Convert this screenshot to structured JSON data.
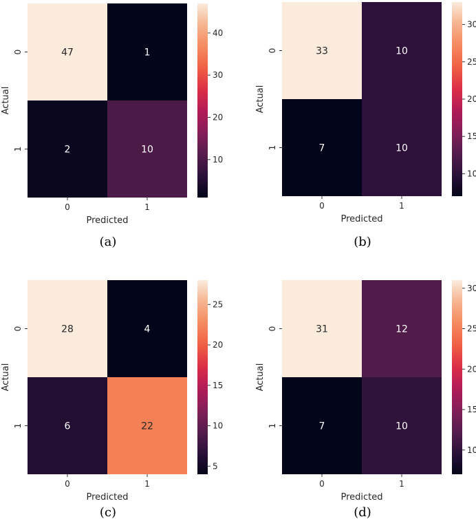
{
  "chart_data": [
    {
      "type": "heatmap",
      "caption": "(a)",
      "xlabel": "Predicted",
      "ylabel": "Actual",
      "x_categories": [
        "0",
        "1"
      ],
      "y_categories": [
        "0",
        "1"
      ],
      "values": [
        [
          47,
          1
        ],
        [
          2,
          10
        ]
      ],
      "colorbar": {
        "range": [
          1,
          47
        ],
        "ticks": [
          10,
          20,
          30,
          40
        ]
      }
    },
    {
      "type": "heatmap",
      "caption": "(b)",
      "xlabel": "Predicted",
      "ylabel": "Actual",
      "x_categories": [
        "0",
        "1"
      ],
      "y_categories": [
        "0",
        "1"
      ],
      "values": [
        [
          33,
          10
        ],
        [
          7,
          10
        ]
      ],
      "colorbar": {
        "range": [
          7,
          33
        ],
        "ticks": [
          10,
          15,
          20,
          25,
          30
        ]
      }
    },
    {
      "type": "heatmap",
      "caption": "(c)",
      "xlabel": "Predicted",
      "ylabel": "Actual",
      "x_categories": [
        "0",
        "1"
      ],
      "y_categories": [
        "0",
        "1"
      ],
      "values": [
        [
          28,
          4
        ],
        [
          6,
          22
        ]
      ],
      "colorbar": {
        "range": [
          4,
          28
        ],
        "ticks": [
          5,
          10,
          15,
          20,
          25
        ]
      }
    },
    {
      "type": "heatmap",
      "caption": "(d)",
      "xlabel": "Predicted",
      "ylabel": "Actual",
      "x_categories": [
        "0",
        "1"
      ],
      "y_categories": [
        "0",
        "1"
      ],
      "values": [
        [
          31,
          12
        ],
        [
          7,
          10
        ]
      ],
      "colorbar": {
        "range": [
          7,
          31
        ],
        "ticks": [
          10,
          15,
          20,
          25,
          30
        ]
      }
    }
  ],
  "colormap": {
    "name": "rocket",
    "stops": [
      "#03051a",
      "#2b1139",
      "#551d4c",
      "#841e5a",
      "#b21b57",
      "#dc2e47",
      "#f06043",
      "#f58a5f",
      "#f6b48e",
      "#faebdd"
    ]
  }
}
